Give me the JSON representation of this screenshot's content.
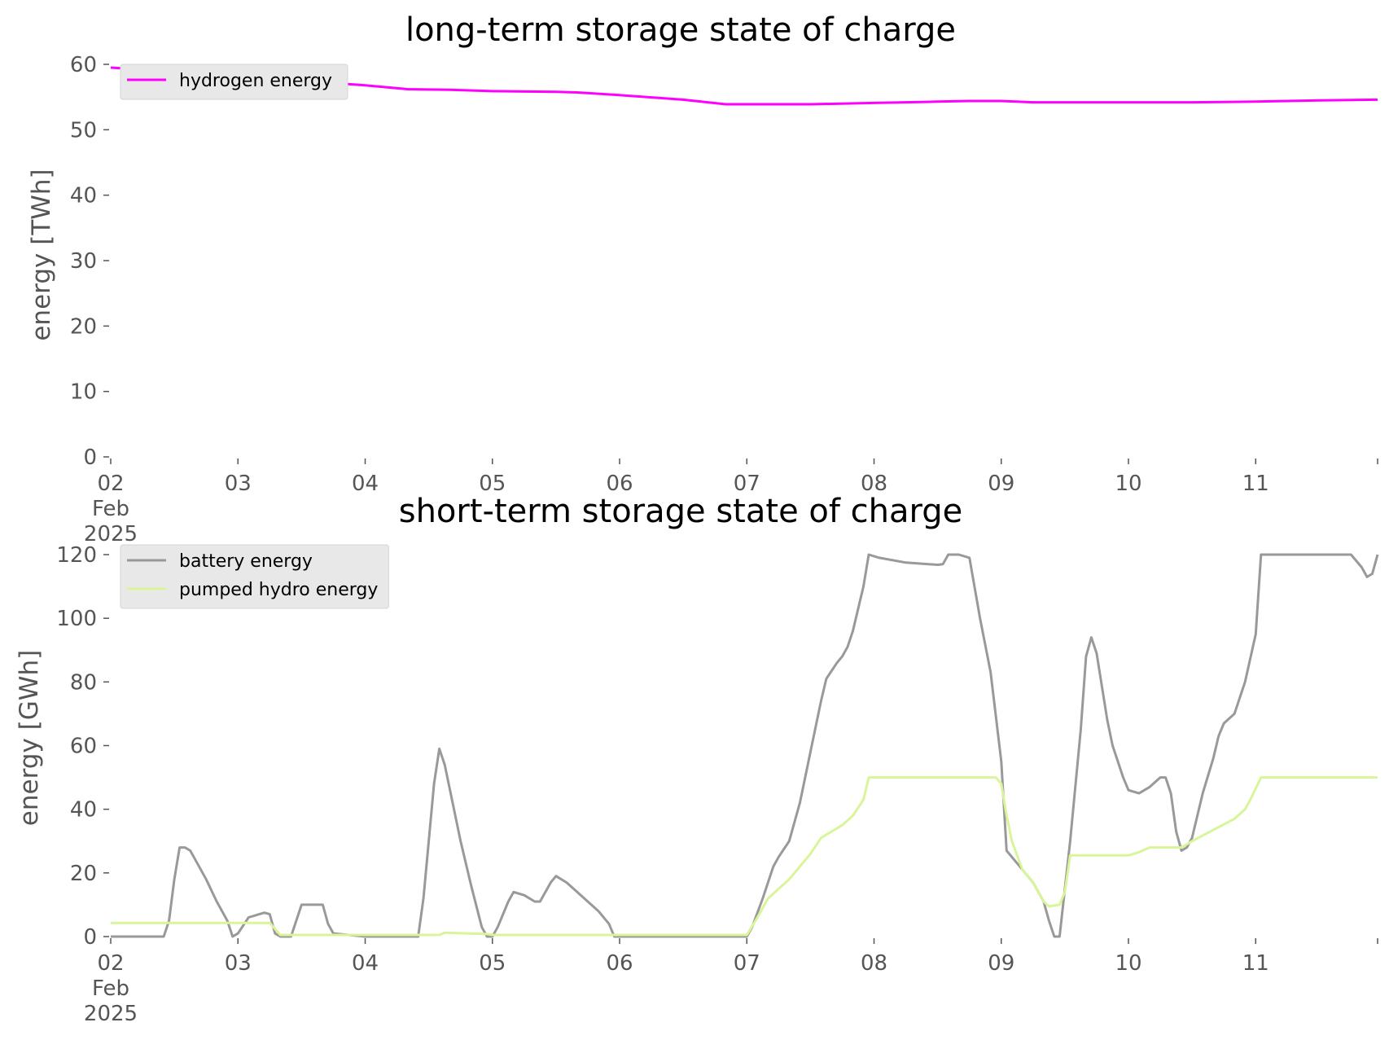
{
  "chart_data": [
    {
      "type": "line",
      "title": "long-term storage state of charge",
      "xlabel": "",
      "ylabel": "energy [TWh]",
      "x_tick_labels": [
        "02\nFeb\n2025",
        "03",
        "04",
        "05",
        "06",
        "07",
        "08",
        "09",
        "10",
        "11"
      ],
      "xlim": [
        "2025-02-02T00:00",
        "2025-02-11T23:00"
      ],
      "ylim": [
        0,
        60
      ],
      "y_ticks": [
        0,
        10,
        20,
        30,
        40,
        50,
        60
      ],
      "grid": false,
      "legend_position": "top-left",
      "series": [
        {
          "name": "hydrogen energy",
          "color": "#ff00ff",
          "points": [
            [
              "2025-02-02T00:00",
              59.5
            ],
            [
              "2025-02-02T12:00",
              58.9
            ],
            [
              "2025-02-03T00:00",
              58.2
            ],
            [
              "2025-02-03T12:00",
              57.5
            ],
            [
              "2025-02-04T00:00",
              56.8
            ],
            [
              "2025-02-04T08:00",
              56.2
            ],
            [
              "2025-02-04T16:00",
              56.1
            ],
            [
              "2025-02-05T00:00",
              55.9
            ],
            [
              "2025-02-05T12:00",
              55.8
            ],
            [
              "2025-02-05T16:00",
              55.7
            ],
            [
              "2025-02-06T00:00",
              55.3
            ],
            [
              "2025-02-06T12:00",
              54.6
            ],
            [
              "2025-02-06T20:00",
              53.9
            ],
            [
              "2025-02-07T00:00",
              53.9
            ],
            [
              "2025-02-07T12:00",
              53.9
            ],
            [
              "2025-02-08T00:00",
              54.1
            ],
            [
              "2025-02-08T12:00",
              54.3
            ],
            [
              "2025-02-08T18:00",
              54.4
            ],
            [
              "2025-02-09T00:00",
              54.4
            ],
            [
              "2025-02-09T06:00",
              54.2
            ],
            [
              "2025-02-09T12:00",
              54.2
            ],
            [
              "2025-02-10T00:00",
              54.2
            ],
            [
              "2025-02-10T12:00",
              54.2
            ],
            [
              "2025-02-11T00:00",
              54.3
            ],
            [
              "2025-02-11T12:00",
              54.5
            ],
            [
              "2025-02-11T23:00",
              54.6
            ]
          ]
        }
      ]
    },
    {
      "type": "line",
      "title": "short-term storage state of charge",
      "xlabel": "",
      "ylabel": "energy [GWh]",
      "x_tick_labels": [
        "02\nFeb\n2025",
        "03",
        "04",
        "05",
        "06",
        "07",
        "08",
        "09",
        "10",
        "11"
      ],
      "xlim": [
        "2025-02-02T00:00",
        "2025-02-11T23:00"
      ],
      "ylim": [
        0,
        120
      ],
      "y_ticks": [
        0,
        20,
        40,
        60,
        80,
        100,
        120
      ],
      "grid": false,
      "legend_position": "top-left",
      "series": [
        {
          "name": "battery energy",
          "color": "#999999",
          "points": [
            [
              "2025-02-02T00:00",
              0
            ],
            [
              "2025-02-02T10:00",
              0
            ],
            [
              "2025-02-02T11:00",
              5
            ],
            [
              "2025-02-02T12:00",
              18
            ],
            [
              "2025-02-02T13:00",
              28
            ],
            [
              "2025-02-02T14:00",
              28
            ],
            [
              "2025-02-02T15:00",
              27
            ],
            [
              "2025-02-02T16:00",
              24
            ],
            [
              "2025-02-02T18:00",
              18
            ],
            [
              "2025-02-02T20:00",
              11
            ],
            [
              "2025-02-02T22:00",
              5
            ],
            [
              "2025-02-02T23:00",
              0
            ],
            [
              "2025-02-03T00:00",
              1
            ],
            [
              "2025-02-03T02:00",
              6
            ],
            [
              "2025-02-03T04:00",
              7
            ],
            [
              "2025-02-03T05:00",
              7.5
            ],
            [
              "2025-02-03T06:00",
              7
            ],
            [
              "2025-02-03T07:00",
              1
            ],
            [
              "2025-02-03T08:00",
              0
            ],
            [
              "2025-02-03T10:00",
              0
            ],
            [
              "2025-02-03T12:00",
              10
            ],
            [
              "2025-02-03T14:00",
              10
            ],
            [
              "2025-02-03T16:00",
              10
            ],
            [
              "2025-02-03T17:00",
              4
            ],
            [
              "2025-02-03T18:00",
              1
            ],
            [
              "2025-02-04T00:00",
              0
            ],
            [
              "2025-02-04T10:00",
              0
            ],
            [
              "2025-02-04T11:00",
              12
            ],
            [
              "2025-02-04T12:00",
              30
            ],
            [
              "2025-02-04T13:00",
              48
            ],
            [
              "2025-02-04T14:00",
              59
            ],
            [
              "2025-02-04T15:00",
              54
            ],
            [
              "2025-02-04T16:00",
              46
            ],
            [
              "2025-02-04T18:00",
              30
            ],
            [
              "2025-02-04T20:00",
              16
            ],
            [
              "2025-02-04T22:00",
              3
            ],
            [
              "2025-02-04T23:00",
              0
            ],
            [
              "2025-02-05T00:00",
              0
            ],
            [
              "2025-02-05T01:00",
              3
            ],
            [
              "2025-02-05T03:00",
              11
            ],
            [
              "2025-02-05T04:00",
              14
            ],
            [
              "2025-02-05T06:00",
              13
            ],
            [
              "2025-02-05T08:00",
              11
            ],
            [
              "2025-02-05T09:00",
              11
            ],
            [
              "2025-02-05T11:00",
              17
            ],
            [
              "2025-02-05T12:00",
              19
            ],
            [
              "2025-02-05T14:00",
              17
            ],
            [
              "2025-02-05T16:00",
              14
            ],
            [
              "2025-02-05T18:00",
              11
            ],
            [
              "2025-02-05T20:00",
              8
            ],
            [
              "2025-02-05T22:00",
              4
            ],
            [
              "2025-02-05T23:00",
              0
            ],
            [
              "2025-02-06T00:00",
              0
            ],
            [
              "2025-02-07T00:00",
              0
            ],
            [
              "2025-02-07T01:00",
              3
            ],
            [
              "2025-02-07T03:00",
              12
            ],
            [
              "2025-02-07T05:00",
              22
            ],
            [
              "2025-02-07T06:00",
              25
            ],
            [
              "2025-02-07T08:00",
              30
            ],
            [
              "2025-02-07T10:00",
              42
            ],
            [
              "2025-02-07T12:00",
              58
            ],
            [
              "2025-02-07T14:00",
              74
            ],
            [
              "2025-02-07T15:00",
              81
            ],
            [
              "2025-02-07T17:00",
              86
            ],
            [
              "2025-02-07T18:00",
              88
            ],
            [
              "2025-02-07T19:00",
              91
            ],
            [
              "2025-02-07T20:00",
              96
            ],
            [
              "2025-02-07T22:00",
              110
            ],
            [
              "2025-02-07T23:00",
              120
            ],
            [
              "2025-02-08T01:00",
              119
            ],
            [
              "2025-02-08T06:00",
              117.5
            ],
            [
              "2025-02-08T12:00",
              116.8
            ],
            [
              "2025-02-08T13:00",
              117
            ],
            [
              "2025-02-08T14:00",
              120
            ],
            [
              "2025-02-08T16:00",
              120
            ],
            [
              "2025-02-08T18:00",
              119
            ],
            [
              "2025-02-08T20:00",
              100
            ],
            [
              "2025-02-08T22:00",
              83
            ],
            [
              "2025-02-09T00:00",
              55
            ],
            [
              "2025-02-09T01:00",
              27
            ],
            [
              "2025-02-09T03:00",
              23
            ],
            [
              "2025-02-09T06:00",
              17
            ],
            [
              "2025-02-09T08:00",
              11
            ],
            [
              "2025-02-09T09:00",
              5
            ],
            [
              "2025-02-09T10:00",
              0
            ],
            [
              "2025-02-09T11:00",
              0
            ],
            [
              "2025-02-09T13:00",
              30
            ],
            [
              "2025-02-09T15:00",
              65
            ],
            [
              "2025-02-09T16:00",
              88
            ],
            [
              "2025-02-09T17:00",
              94
            ],
            [
              "2025-02-09T18:00",
              89
            ],
            [
              "2025-02-09T20:00",
              68
            ],
            [
              "2025-02-09T21:00",
              60
            ],
            [
              "2025-02-09T23:00",
              50
            ],
            [
              "2025-02-10T00:00",
              46
            ],
            [
              "2025-02-10T02:00",
              45
            ],
            [
              "2025-02-10T04:00",
              47
            ],
            [
              "2025-02-10T06:00",
              50
            ],
            [
              "2025-02-10T07:00",
              50
            ],
            [
              "2025-02-10T08:00",
              45
            ],
            [
              "2025-02-10T09:00",
              33
            ],
            [
              "2025-02-10T10:00",
              27
            ],
            [
              "2025-02-10T11:00",
              28
            ],
            [
              "2025-02-10T12:00",
              31
            ],
            [
              "2025-02-10T14:00",
              45
            ],
            [
              "2025-02-10T16:00",
              56
            ],
            [
              "2025-02-10T17:00",
              63
            ],
            [
              "2025-02-10T18:00",
              67
            ],
            [
              "2025-02-10T20:00",
              70
            ],
            [
              "2025-02-10T22:00",
              80
            ],
            [
              "2025-02-11T00:00",
              95
            ],
            [
              "2025-02-11T01:00",
              120
            ],
            [
              "2025-02-11T18:00",
              120
            ],
            [
              "2025-02-11T20:00",
              116
            ],
            [
              "2025-02-11T21:00",
              113
            ],
            [
              "2025-02-11T22:00",
              114
            ],
            [
              "2025-02-11T23:00",
              120
            ]
          ]
        },
        {
          "name": "pumped hydro energy",
          "color": "#d9f59a",
          "points": [
            [
              "2025-02-02T00:00",
              4.3
            ],
            [
              "2025-02-03T06:00",
              4.3
            ],
            [
              "2025-02-03T08:00",
              0.5
            ],
            [
              "2025-02-04T14:00",
              0.5
            ],
            [
              "2025-02-04T15:00",
              1.2
            ],
            [
              "2025-02-04T23:00",
              0.8
            ],
            [
              "2025-02-05T00:00",
              0.5
            ],
            [
              "2025-02-07T00:00",
              0.5
            ],
            [
              "2025-02-07T02:00",
              6
            ],
            [
              "2025-02-07T04:00",
              12
            ],
            [
              "2025-02-07T06:00",
              15
            ],
            [
              "2025-02-07T08:00",
              18
            ],
            [
              "2025-02-07T10:00",
              22
            ],
            [
              "2025-02-07T12:00",
              26
            ],
            [
              "2025-02-07T14:00",
              31
            ],
            [
              "2025-02-07T16:00",
              33
            ],
            [
              "2025-02-07T18:00",
              35
            ],
            [
              "2025-02-07T20:00",
              38
            ],
            [
              "2025-02-07T22:00",
              43
            ],
            [
              "2025-02-07T23:00",
              50
            ],
            [
              "2025-02-08T23:00",
              50
            ],
            [
              "2025-02-09T00:00",
              48
            ],
            [
              "2025-02-09T01:00",
              38
            ],
            [
              "2025-02-09T02:00",
              30
            ],
            [
              "2025-02-09T04:00",
              21
            ],
            [
              "2025-02-09T06:00",
              17
            ],
            [
              "2025-02-09T08:00",
              11
            ],
            [
              "2025-02-09T09:00",
              9.5
            ],
            [
              "2025-02-09T11:00",
              10
            ],
            [
              "2025-02-09T12:00",
              14
            ],
            [
              "2025-02-09T13:00",
              25.5
            ],
            [
              "2025-02-10T00:00",
              25.5
            ],
            [
              "2025-02-10T02:00",
              26.5
            ],
            [
              "2025-02-10T04:00",
              28
            ],
            [
              "2025-02-10T10:00",
              28
            ],
            [
              "2025-02-10T12:00",
              30
            ],
            [
              "2025-02-10T16:00",
              33.5
            ],
            [
              "2025-02-10T20:00",
              37
            ],
            [
              "2025-02-10T22:00",
              40
            ],
            [
              "2025-02-10T23:00",
              43
            ],
            [
              "2025-02-11T01:00",
              50
            ],
            [
              "2025-02-11T23:00",
              50
            ]
          ]
        }
      ]
    }
  ]
}
